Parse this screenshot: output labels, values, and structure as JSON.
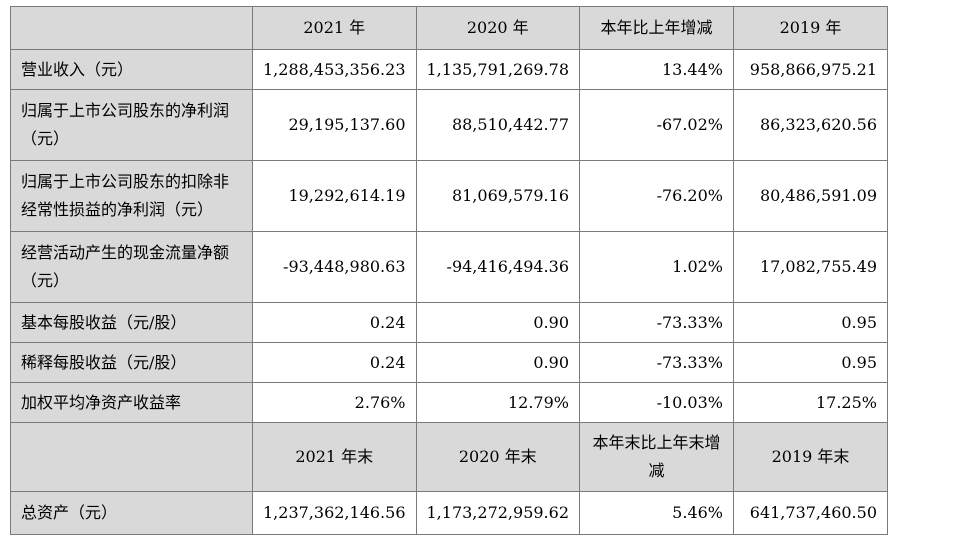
{
  "header": {
    "c1": "2021 年",
    "c2": "2020 年",
    "c3": "本年比上年增减",
    "c4": "2019 年"
  },
  "rows": [
    {
      "label": "营业收入（元）",
      "v2021": "1,288,453,356.23",
      "v2020": "1,135,791,269.78",
      "change": "13.44%",
      "v2019": "958,866,975.21"
    },
    {
      "label": "归属于上市公司股东的净利润（元）",
      "v2021": "29,195,137.60",
      "v2020": "88,510,442.77",
      "change": "-67.02%",
      "v2019": "86,323,620.56"
    },
    {
      "label": "归属于上市公司股东的扣除非经常性损益的净利润（元）",
      "v2021": "19,292,614.19",
      "v2020": "81,069,579.16",
      "change": "-76.20%",
      "v2019": "80,486,591.09"
    },
    {
      "label": "经营活动产生的现金流量净额（元）",
      "v2021": "-93,448,980.63",
      "v2020": "-94,416,494.36",
      "change": "1.02%",
      "v2019": "17,082,755.49"
    },
    {
      "label": "基本每股收益（元/股）",
      "v2021": "0.24",
      "v2020": "0.90",
      "change": "-73.33%",
      "v2019": "0.95"
    },
    {
      "label": "稀释每股收益（元/股）",
      "v2021": "0.24",
      "v2020": "0.90",
      "change": "-73.33%",
      "v2019": "0.95"
    },
    {
      "label": "加权平均净资产收益率",
      "v2021": "2.76%",
      "v2020": "12.79%",
      "change": "-10.03%",
      "v2019": "17.25%"
    }
  ],
  "header2": {
    "c1": "2021 年末",
    "c2": "2020 年末",
    "c3": "本年末比上年末增减",
    "c4": "2019 年末"
  },
  "rows2": [
    {
      "label": "总资产（元）",
      "v2021": "1,237,362,146.56",
      "v2020": "1,173,272,959.62",
      "change": "5.46%",
      "v2019": "641,737,460.50"
    }
  ]
}
